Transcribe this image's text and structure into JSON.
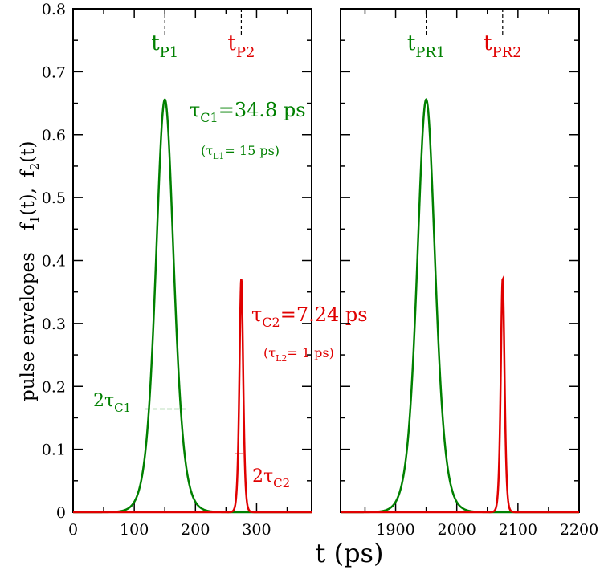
{
  "chart_data": {
    "type": "line",
    "xlabel": "t (ps)",
    "ylabel": {
      "main": "pulse envelopes",
      "f1": "f",
      "f1_sub": "1",
      "f1_tail": "(t),",
      "f2": "f",
      "f2_sub": "2",
      "f2_tail": "(t)"
    },
    "ylim": [
      0,
      0.8
    ],
    "yticks": [
      "0",
      "0.1",
      "0.2",
      "0.3",
      "0.4",
      "0.5",
      "0.6",
      "0.7",
      "0.8"
    ],
    "panels": [
      {
        "name": "left",
        "xlim": [
          0,
          390
        ],
        "xticks": [
          "0",
          "100",
          "200",
          "300"
        ],
        "tick_values": [
          0,
          100,
          200,
          300
        ],
        "series": [
          {
            "name": "f1",
            "color": "#008000",
            "center": 150,
            "fwhm": 34.8,
            "peak": 0.656
          },
          {
            "name": "f2",
            "color": "#e00000",
            "center": 275,
            "fwhm": 7.24,
            "peak": 0.371
          }
        ],
        "markers": [
          {
            "label": "t",
            "sub": "P1",
            "x": 150,
            "color": "#008000"
          },
          {
            "label": "t",
            "sub": "P2",
            "x": 275,
            "color": "#e00000"
          }
        ],
        "annotations": {
          "tau_c1_main": "τ",
          "tau_c1_sub": "C1",
          "tau_c1_value": "=34.8 ps",
          "tau_l1_open": "(τ",
          "tau_l1_sub": "L1",
          "tau_l1_value": "= 15 ps)",
          "tau_c2_main": "τ",
          "tau_c2_sub": "C2",
          "tau_c2_value": "=7.24 ps",
          "tau_l2_open": "(τ",
          "tau_l2_sub": "L2",
          "tau_l2_value": "= 1 ps)",
          "width_c1_main": "2τ",
          "width_c1_sub": "C1",
          "width_c2_main": "2τ",
          "width_c2_sub": "C2"
        }
      },
      {
        "name": "right",
        "xlim": [
          1810,
          2200
        ],
        "xticks": [
          "1900",
          "2000",
          "2100",
          "2200"
        ],
        "tick_values": [
          1900,
          2000,
          2100,
          2200
        ],
        "series": [
          {
            "name": "f1",
            "color": "#008000",
            "center": 1950,
            "fwhm": 34.8,
            "peak": 0.656
          },
          {
            "name": "f2",
            "color": "#e00000",
            "center": 2075,
            "fwhm": 7.24,
            "peak": 0.371
          }
        ],
        "markers": [
          {
            "label": "t",
            "sub": "PR1",
            "x": 1950,
            "color": "#008000"
          },
          {
            "label": "t",
            "sub": "PR2",
            "x": 2075,
            "color": "#e00000"
          }
        ]
      }
    ]
  }
}
